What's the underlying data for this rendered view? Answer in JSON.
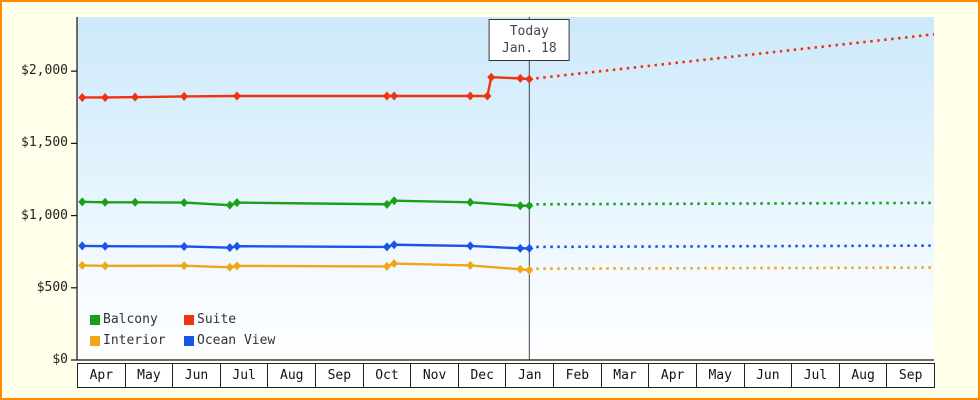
{
  "frame": {
    "background_color": "#ffffea",
    "border_color": "#ff8a00"
  },
  "today_marker": {
    "line1": "Today",
    "line2": "Jan. 18",
    "x_month": 9.5
  },
  "chart_data": {
    "type": "line",
    "title": "",
    "xlabel": "",
    "ylabel": "",
    "grid": false,
    "legend_position": "bottom-left-inside",
    "x_axis": {
      "months": [
        "Apr",
        "May",
        "Jun",
        "Jul",
        "Aug",
        "Sep",
        "Oct",
        "Nov",
        "Dec",
        "Jan",
        "Feb",
        "Mar",
        "Apr",
        "May",
        "Jun",
        "Jul",
        "Aug",
        "Sep"
      ]
    },
    "y_axis": {
      "ticks": [
        0,
        500,
        1000,
        1500,
        2000
      ],
      "tick_labels": [
        "$0",
        "$500",
        "$1,000",
        "$1,500",
        "$2,000"
      ],
      "max_value": 2375
    },
    "series": [
      {
        "name": "Suite",
        "color": "#ee3311",
        "solid": [
          [
            0.11,
            1818
          ],
          [
            0.59,
            1818
          ],
          [
            1.22,
            1820
          ],
          [
            2.25,
            1825
          ],
          [
            3.36,
            1828
          ],
          [
            6.51,
            1828
          ],
          [
            6.66,
            1828
          ],
          [
            8.26,
            1828
          ],
          [
            8.62,
            1828
          ],
          [
            8.7,
            1958
          ],
          [
            9.31,
            1950
          ],
          [
            9.5,
            1945
          ]
        ],
        "dotted": [
          [
            9.5,
            1945
          ],
          [
            18,
            2255
          ]
        ]
      },
      {
        "name": "Balcony",
        "color": "#18a018",
        "solid": [
          [
            0.11,
            1095
          ],
          [
            0.59,
            1092
          ],
          [
            1.22,
            1092
          ],
          [
            2.25,
            1090
          ],
          [
            3.21,
            1072
          ],
          [
            3.36,
            1090
          ],
          [
            6.51,
            1078
          ],
          [
            6.66,
            1103
          ],
          [
            8.26,
            1092
          ],
          [
            9.31,
            1068
          ],
          [
            9.5,
            1068
          ]
        ],
        "dotted": [
          [
            9.5,
            1078
          ],
          [
            18,
            1088
          ]
        ]
      },
      {
        "name": "Ocean View",
        "color": "#1a53e8",
        "solid": [
          [
            0.11,
            790
          ],
          [
            0.59,
            788
          ],
          [
            2.25,
            786
          ],
          [
            3.21,
            778
          ],
          [
            3.36,
            788
          ],
          [
            6.51,
            783
          ],
          [
            6.66,
            798
          ],
          [
            8.26,
            790
          ],
          [
            9.31,
            773
          ],
          [
            9.5,
            773
          ]
        ],
        "dotted": [
          [
            9.5,
            783
          ],
          [
            18,
            792
          ]
        ]
      },
      {
        "name": "Interior",
        "color": "#f2a516",
        "solid": [
          [
            0.11,
            655
          ],
          [
            0.59,
            652
          ],
          [
            2.25,
            653
          ],
          [
            3.21,
            642
          ],
          [
            3.36,
            652
          ],
          [
            6.51,
            648
          ],
          [
            6.66,
            668
          ],
          [
            8.26,
            655
          ],
          [
            9.31,
            628
          ],
          [
            9.5,
            622
          ]
        ],
        "dotted": [
          [
            9.5,
            632
          ],
          [
            18,
            640
          ]
        ]
      }
    ],
    "legend": [
      {
        "label": "Balcony",
        "color": "#18a018"
      },
      {
        "label": "Suite",
        "color": "#ee3311"
      },
      {
        "label": "Interior",
        "color": "#f2a516"
      },
      {
        "label": "Ocean View",
        "color": "#1a53e8"
      }
    ]
  }
}
